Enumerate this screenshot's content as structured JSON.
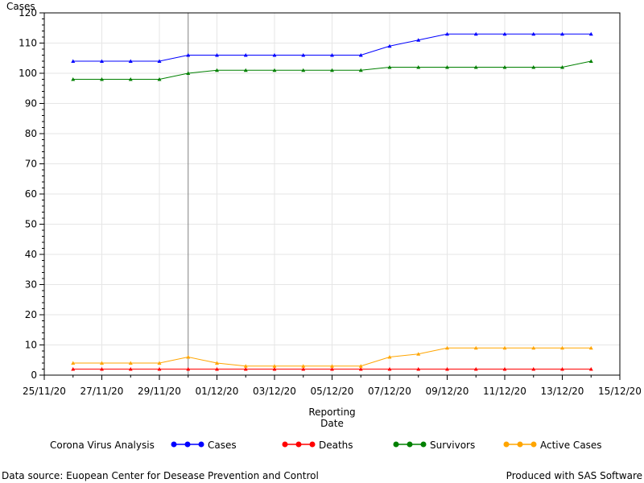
{
  "chart_data": {
    "type": "line",
    "ylabel": "Cases",
    "xlabel_lines": [
      "Reporting",
      "Date"
    ],
    "ylim": [
      0,
      120
    ],
    "y_ticks": [
      0,
      10,
      20,
      30,
      40,
      50,
      60,
      70,
      80,
      90,
      100,
      110,
      120
    ],
    "x_tick_labels": [
      "25/11/20",
      "27/11/20",
      "29/11/20",
      "01/12/20",
      "03/12/20",
      "05/12/20",
      "07/12/20",
      "09/12/20",
      "11/12/20",
      "13/12/20",
      "15/12/20"
    ],
    "x_dates": [
      "26/11/20",
      "27/11/20",
      "28/11/20",
      "29/11/20",
      "30/11/20",
      "01/12/20",
      "02/12/20",
      "03/12/20",
      "04/12/20",
      "05/12/20",
      "06/12/20",
      "07/12/20",
      "08/12/20",
      "09/12/20",
      "10/12/20",
      "11/12/20",
      "12/12/20",
      "13/12/20",
      "14/12/20"
    ],
    "reference_line_date": "30/11/20",
    "grid": true,
    "legend_title": "Corona Virus Analysis",
    "legend_position": "bottom",
    "series": [
      {
        "name": "Cases",
        "color": "#0000ff",
        "values": [
          104,
          104,
          104,
          104,
          106,
          106,
          106,
          106,
          106,
          106,
          106,
          109,
          111,
          113,
          113,
          113,
          113,
          113,
          113
        ]
      },
      {
        "name": "Deaths",
        "color": "#ff0000",
        "values": [
          2,
          2,
          2,
          2,
          2,
          2,
          2,
          2,
          2,
          2,
          2,
          2,
          2,
          2,
          2,
          2,
          2,
          2,
          2
        ]
      },
      {
        "name": "Survivors",
        "color": "#008000",
        "values": [
          98,
          98,
          98,
          98,
          100,
          101,
          101,
          101,
          101,
          101,
          101,
          102,
          102,
          102,
          102,
          102,
          102,
          102,
          104
        ]
      },
      {
        "name": "Active Cases",
        "color": "#ffa500",
        "values": [
          4,
          4,
          4,
          4,
          6,
          4,
          3,
          3,
          3,
          3,
          3,
          6,
          7,
          9,
          9,
          9,
          9,
          9,
          9
        ]
      }
    ]
  },
  "footer": {
    "left": "Data source: Euopean Center for Desease Prevention and Control",
    "right": "Produced with SAS Software"
  }
}
